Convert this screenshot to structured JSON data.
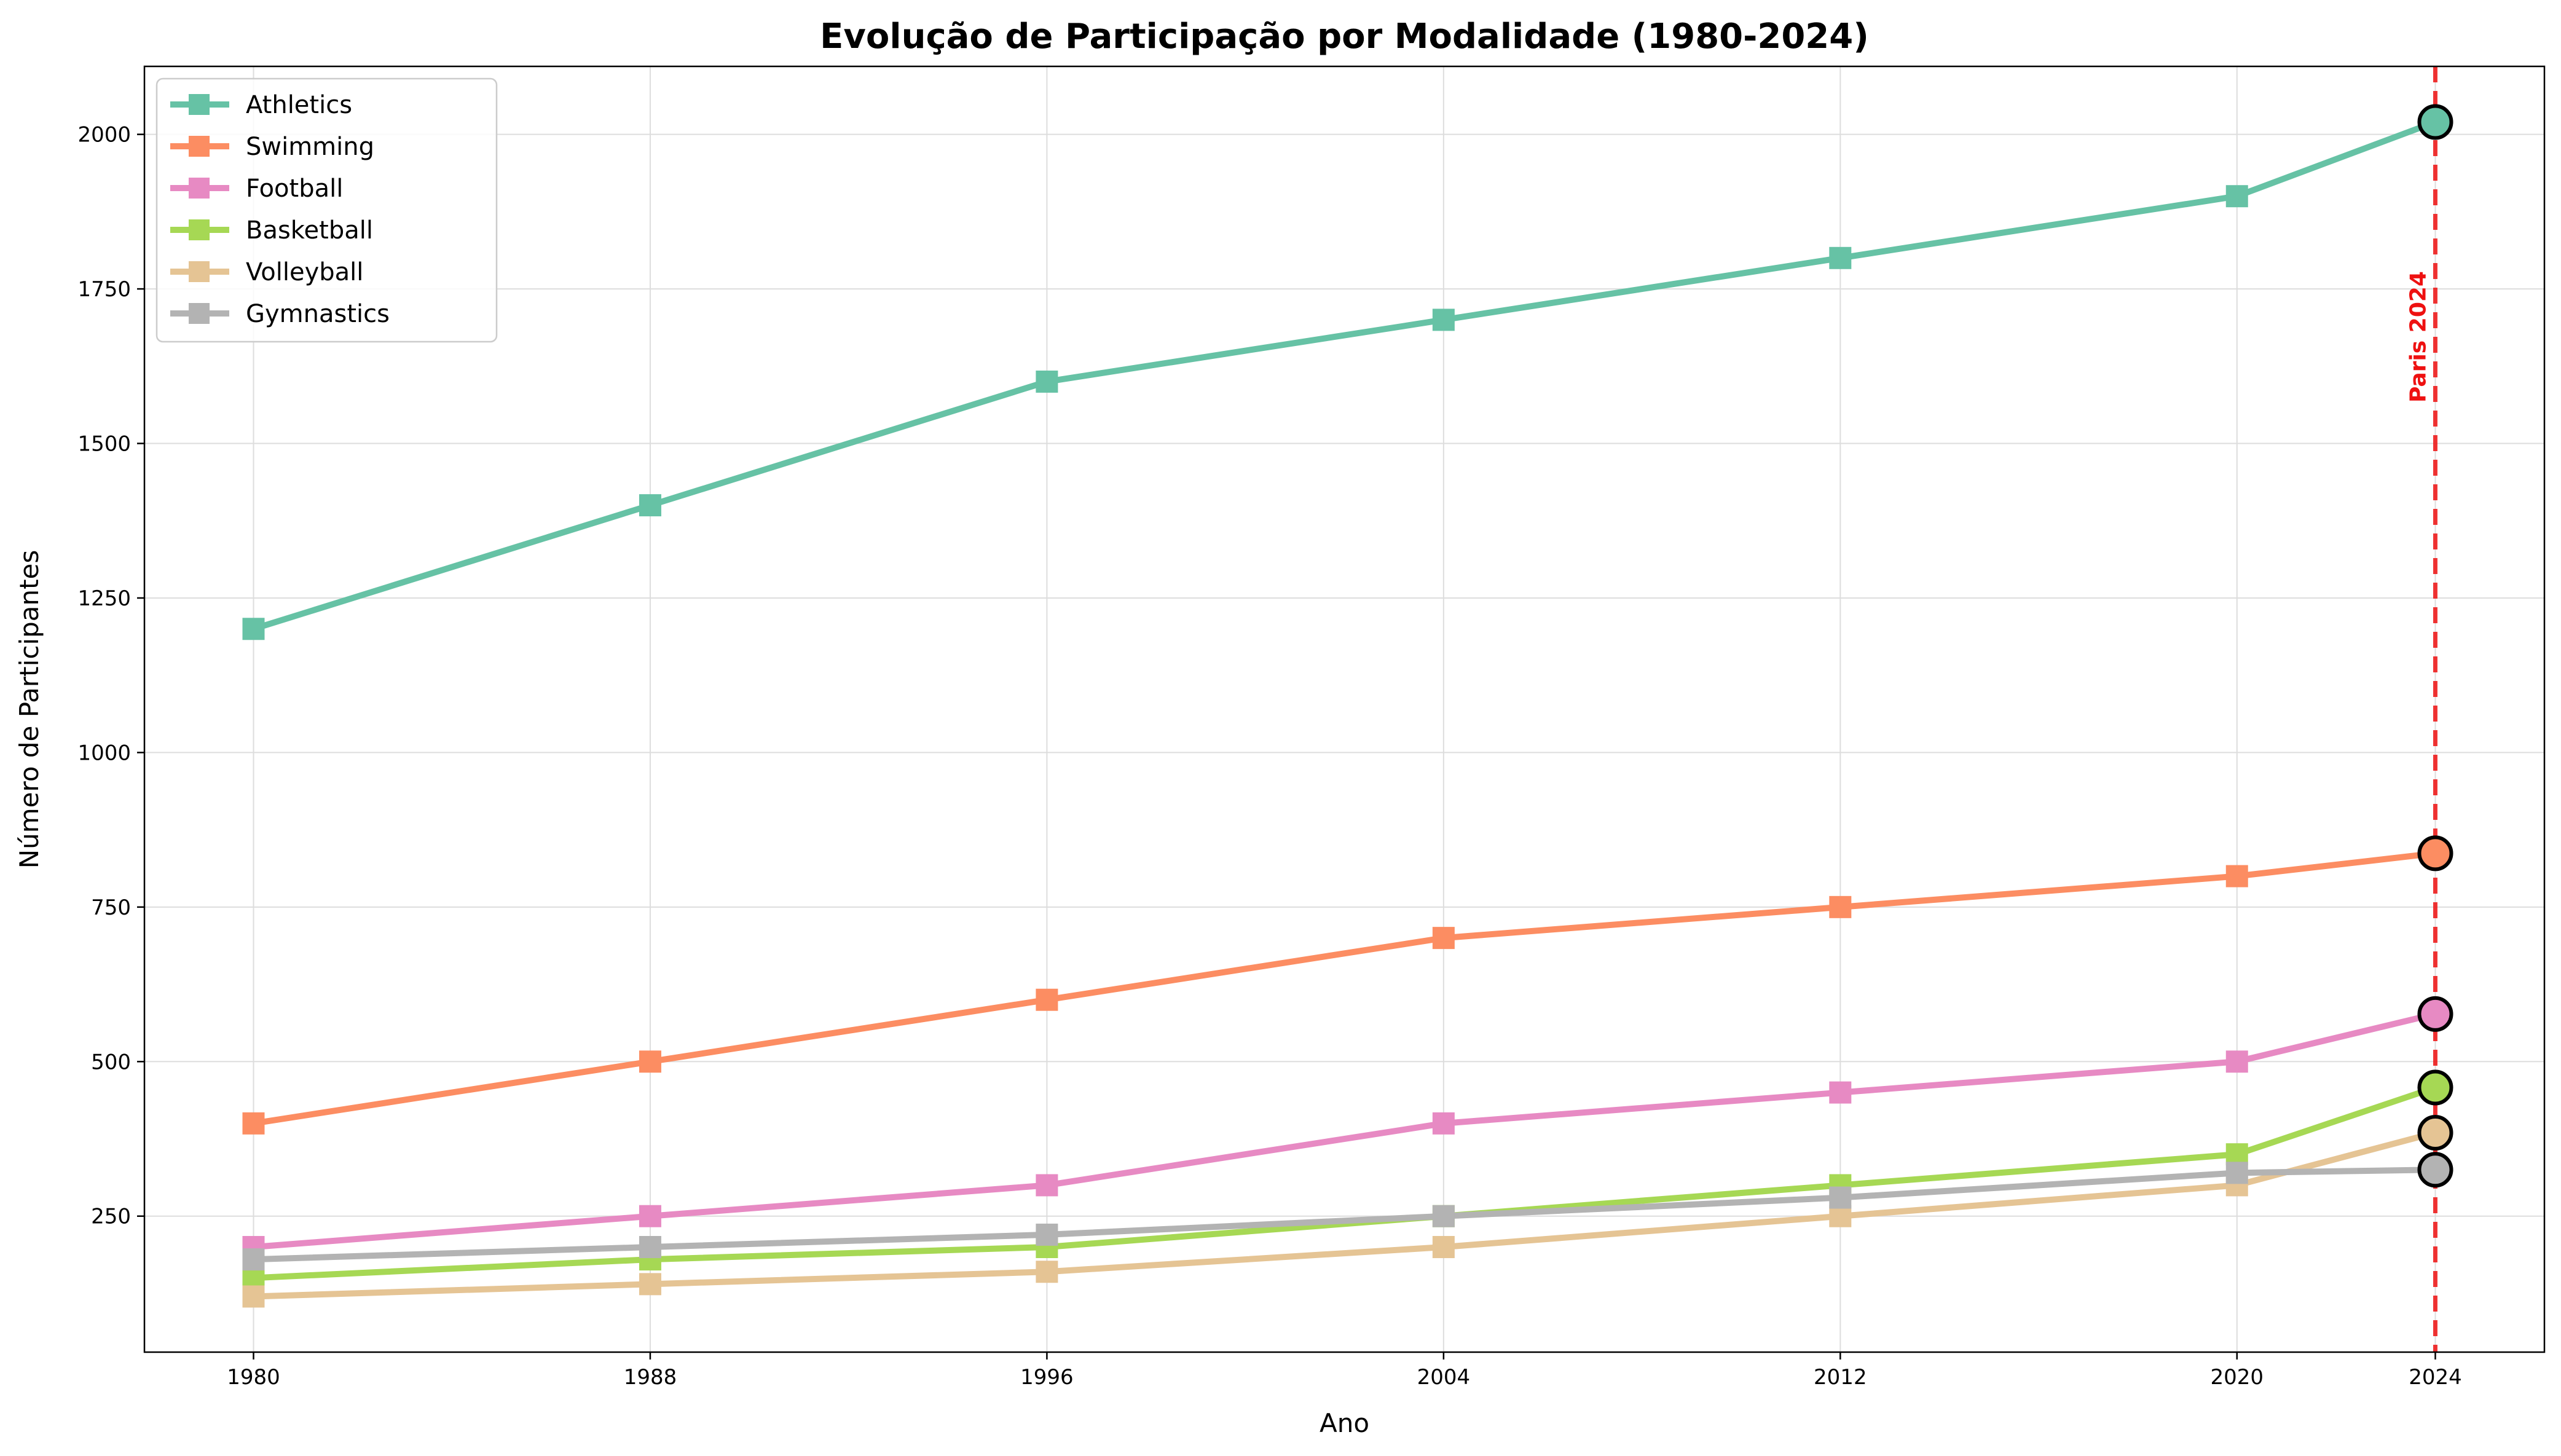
{
  "chart_data": {
    "type": "line",
    "title": "Evolução de Participação por Modalidade (1980-2024)",
    "xlabel": "Ano",
    "ylabel": "Número de Participantes",
    "x": [
      1980,
      1988,
      1996,
      2004,
      2012,
      2020,
      2024
    ],
    "x_ticks": [
      "1980",
      "1988",
      "1996",
      "2004",
      "2012",
      "2020",
      "2024"
    ],
    "y_ticks": [
      "250",
      "500",
      "750",
      "1000",
      "1250",
      "1500",
      "1750",
      "2000"
    ],
    "xlim": [
      1977.8,
      2026.2
    ],
    "ylim": [
      30,
      2110
    ],
    "grid": true,
    "legend_position": "top-left",
    "series": [
      {
        "name": "Athletics",
        "color": "#66c2a5",
        "values": [
          1200,
          1400,
          1600,
          1700,
          1800,
          1900,
          2020
        ]
      },
      {
        "name": "Swimming",
        "color": "#fc8d62",
        "values": [
          400,
          500,
          600,
          700,
          750,
          800,
          837
        ]
      },
      {
        "name": "Football",
        "color": "#e78ac3",
        "values": [
          200,
          250,
          300,
          400,
          450,
          500,
          577
        ]
      },
      {
        "name": "Basketball",
        "color": "#a6d854",
        "values": [
          150,
          180,
          200,
          250,
          300,
          350,
          458
        ]
      },
      {
        "name": "Volleyball",
        "color": "#e5c494",
        "values": [
          120,
          140,
          160,
          200,
          250,
          300,
          385
        ]
      },
      {
        "name": "Gymnastics",
        "color": "#b3b3b3",
        "values": [
          180,
          200,
          220,
          250,
          280,
          320,
          325
        ]
      }
    ],
    "annotations": [
      {
        "type": "vline",
        "x": 2024,
        "label": "Paris 2024",
        "color": "#ee1111"
      }
    ]
  }
}
